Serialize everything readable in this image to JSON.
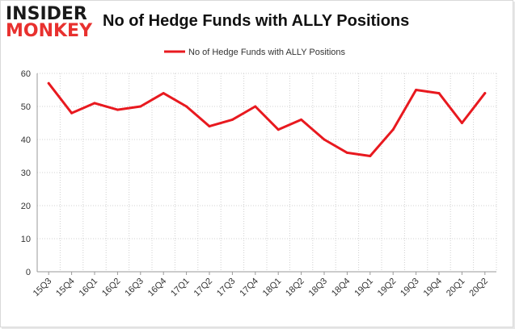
{
  "branding": {
    "logo_top": "INSIDER",
    "logo_bottom": "MONKEY"
  },
  "chart_data": {
    "type": "line",
    "title": "No of Hedge Funds with ALLY Positions",
    "xlabel": "",
    "ylabel": "",
    "categories": [
      "15Q3",
      "15Q4",
      "16Q1",
      "16Q2",
      "16Q3",
      "16Q4",
      "17Q1",
      "17Q2",
      "17Q3",
      "17Q4",
      "18Q1",
      "18Q2",
      "18Q3",
      "18Q4",
      "19Q1",
      "19Q2",
      "19Q3",
      "19Q4",
      "20Q1",
      "20Q2"
    ],
    "series": [
      {
        "name": "No of Hedge Funds with ALLY Positions",
        "color": "#e8191f",
        "values": [
          57,
          48,
          51,
          49,
          50,
          54,
          50,
          44,
          46,
          50,
          43,
          46,
          40,
          36,
          35,
          43,
          55,
          54,
          45,
          54
        ]
      }
    ],
    "ylim": [
      0,
      60
    ],
    "yticks": [
      0,
      10,
      20,
      30,
      40,
      50,
      60
    ],
    "grid": true,
    "legend": "top-center"
  },
  "colors": {
    "line": "#e8191f",
    "grid": "#d0d0d0",
    "axis": "#999999",
    "logo_red": "#e8312f"
  }
}
